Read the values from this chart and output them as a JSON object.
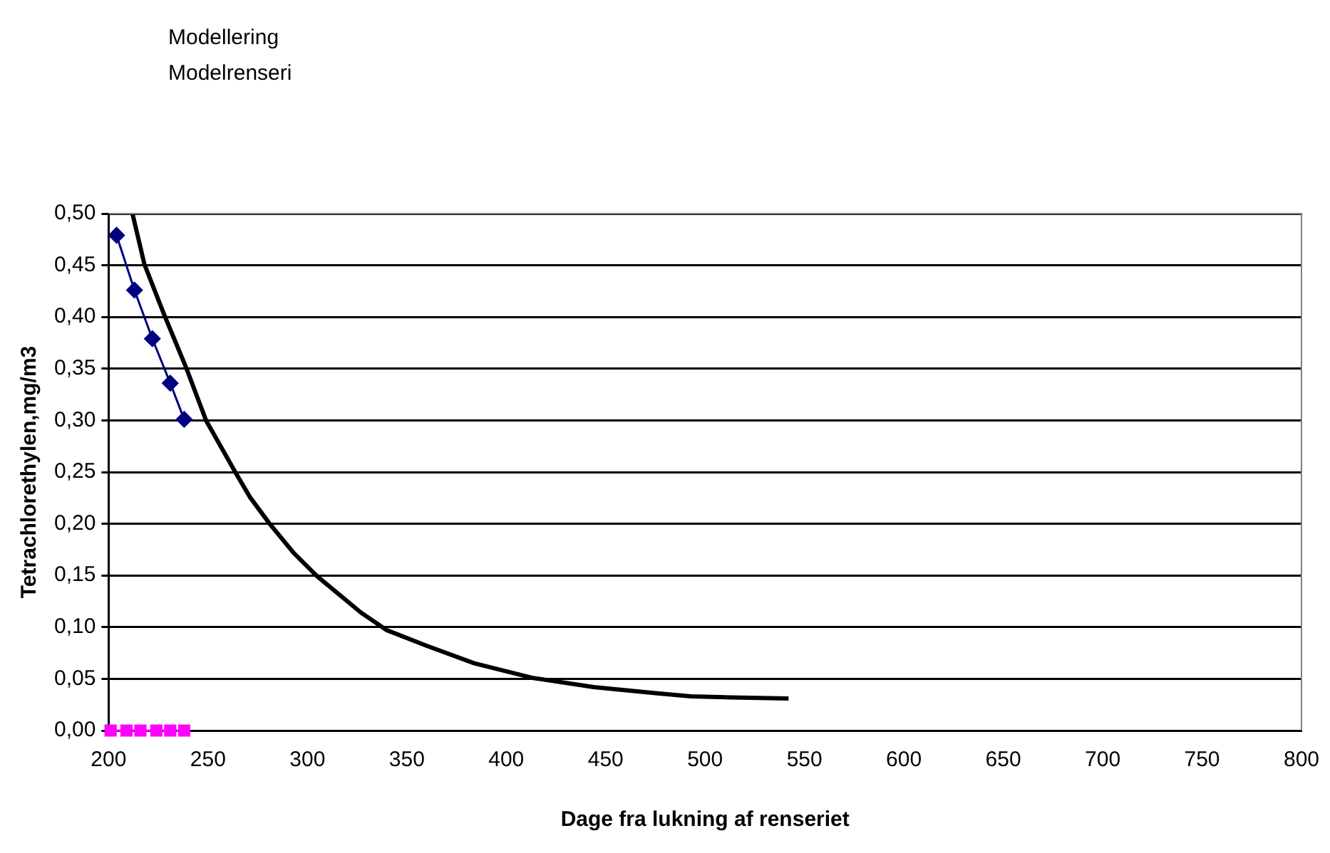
{
  "chart_data": {
    "type": "line",
    "title": "Modellering",
    "subtitle": "Modelrenseri",
    "xlabel": "Dage fra lukning af renseriet",
    "ylabel": "Tetrachlorethylen,mg/m3",
    "xlim": [
      200,
      800
    ],
    "xticks": [
      200,
      250,
      300,
      350,
      400,
      450,
      500,
      550,
      600,
      650,
      700,
      750,
      800
    ],
    "ylim": [
      0,
      0.5
    ],
    "yticks": [
      {
        "value": 0,
        "label": "0,00"
      },
      {
        "value": 0.05,
        "label": "0,05"
      },
      {
        "value": 0.1,
        "label": "0,10"
      },
      {
        "value": 0.15,
        "label": "0,15"
      },
      {
        "value": 0.2,
        "label": "0,20"
      },
      {
        "value": 0.25,
        "label": "0,25"
      },
      {
        "value": 0.3,
        "label": "0,30"
      },
      {
        "value": 0.35,
        "label": "0,35"
      },
      {
        "value": 0.4,
        "label": "0,40"
      },
      {
        "value": 0.45,
        "label": "0,45"
      },
      {
        "value": 0.5,
        "label": "0,50"
      }
    ],
    "grid": "y",
    "legend": false,
    "series": [
      {
        "color": "#000000",
        "marker": "none",
        "x": [
          212,
          218,
          228,
          239,
          249,
          264,
          271,
          281,
          293,
          305,
          327,
          340,
          360,
          384,
          413,
          444,
          476,
          493,
          513,
          542
        ],
        "values": [
          0.5,
          0.451,
          0.402,
          0.351,
          0.3,
          0.249,
          0.226,
          0.2,
          0.172,
          0.149,
          0.114,
          0.097,
          0.082,
          0.065,
          0.051,
          0.042,
          0.036,
          0.033,
          0.032,
          0.031
        ]
      },
      {
        "color": "#000080",
        "marker": "diamond",
        "x": [
          204,
          213,
          222,
          231,
          238
        ],
        "values": [
          0.479,
          0.426,
          0.379,
          0.336,
          0.301
        ]
      },
      {
        "color": "#ff00ff",
        "marker": "square",
        "x": [
          201,
          209,
          216,
          224,
          231,
          238
        ],
        "values": [
          0,
          0,
          0,
          0,
          0,
          0
        ]
      }
    ]
  }
}
